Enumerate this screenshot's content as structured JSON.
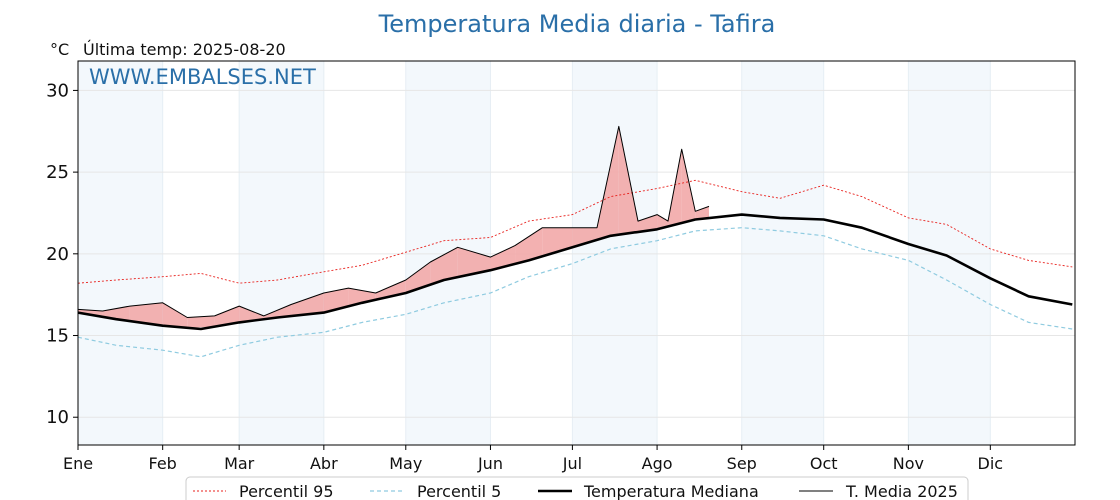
{
  "chart_data": {
    "type": "line",
    "title": "Temperatura Media diaria - Tafira",
    "unit_label": "°C",
    "last_temp_label": "Última temp: 2025-08-20",
    "watermark": "WWW.EMBALSES.NET",
    "xlabel": "",
    "ylabel": "",
    "ylim": [
      8.3,
      31.8
    ],
    "yticks": [
      10,
      15,
      20,
      25,
      30
    ],
    "months": [
      "Ene",
      "Feb",
      "Mar",
      "Abr",
      "May",
      "Jun",
      "Jul",
      "Ago",
      "Sep",
      "Oct",
      "Nov",
      "Dic"
    ],
    "grid": true,
    "legend_position": "bottom",
    "colors": {
      "title": "#2a6fa8",
      "p95": "#e8211d",
      "p5": "#8fcbe0",
      "median": "#000000",
      "current": "#000000",
      "above_fill": "#f2a8a8",
      "below_fill": "#7fa6c8",
      "band": "#f3f8fc"
    },
    "series": [
      {
        "name": "Percentil 95",
        "key": "p95",
        "x": [
          "01-01",
          "01-15",
          "02-01",
          "02-15",
          "03-01",
          "03-15",
          "04-01",
          "04-15",
          "05-01",
          "05-15",
          "06-01",
          "06-15",
          "07-01",
          "07-15",
          "08-01",
          "08-15",
          "09-01",
          "09-15",
          "10-01",
          "10-15",
          "11-01",
          "11-15",
          "12-01",
          "12-15",
          "12-31"
        ],
        "values": [
          18.2,
          18.4,
          18.6,
          18.8,
          18.2,
          18.4,
          18.9,
          19.3,
          20.1,
          20.8,
          21.0,
          22.0,
          22.4,
          23.5,
          24.0,
          24.5,
          23.8,
          23.4,
          24.2,
          23.5,
          22.2,
          21.8,
          20.3,
          19.6,
          19.2
        ]
      },
      {
        "name": "Percentil 5",
        "key": "p5",
        "x": [
          "01-01",
          "01-15",
          "02-01",
          "02-15",
          "03-01",
          "03-15",
          "04-01",
          "04-15",
          "05-01",
          "05-15",
          "06-01",
          "06-15",
          "07-01",
          "07-15",
          "08-01",
          "08-15",
          "09-01",
          "09-15",
          "10-01",
          "10-15",
          "11-01",
          "11-15",
          "12-01",
          "12-15",
          "12-31"
        ],
        "values": [
          14.9,
          14.4,
          14.1,
          13.7,
          14.4,
          14.9,
          15.2,
          15.8,
          16.3,
          17.0,
          17.6,
          18.6,
          19.4,
          20.3,
          20.8,
          21.4,
          21.6,
          21.4,
          21.1,
          20.3,
          19.6,
          18.4,
          16.9,
          15.8,
          15.4
        ]
      },
      {
        "name": "Temperatura Mediana",
        "key": "median",
        "x": [
          "01-01",
          "01-15",
          "02-01",
          "02-15",
          "03-01",
          "03-15",
          "04-01",
          "04-15",
          "05-01",
          "05-15",
          "06-01",
          "06-15",
          "07-01",
          "07-15",
          "08-01",
          "08-15",
          "09-01",
          "09-15",
          "10-01",
          "10-15",
          "11-01",
          "11-15",
          "12-01",
          "12-15",
          "12-31"
        ],
        "values": [
          16.4,
          16.0,
          15.6,
          15.4,
          15.8,
          16.1,
          16.4,
          17.0,
          17.6,
          18.4,
          19.0,
          19.6,
          20.4,
          21.1,
          21.5,
          22.1,
          22.4,
          22.2,
          22.1,
          21.6,
          20.6,
          19.9,
          18.5,
          17.4,
          16.9
        ]
      },
      {
        "name": "T. Media 2025",
        "key": "current",
        "x": [
          "01-01",
          "01-10",
          "01-20",
          "02-01",
          "02-10",
          "02-20",
          "03-01",
          "03-10",
          "03-20",
          "04-01",
          "04-10",
          "04-20",
          "05-01",
          "05-10",
          "05-20",
          "06-01",
          "06-10",
          "06-20",
          "07-01",
          "07-10",
          "07-18",
          "07-25",
          "08-01",
          "08-05",
          "08-10",
          "08-15",
          "08-20"
        ],
        "values": [
          16.6,
          16.5,
          16.8,
          17.0,
          16.1,
          16.2,
          16.8,
          16.2,
          16.9,
          17.6,
          17.9,
          17.6,
          18.4,
          19.5,
          20.4,
          19.8,
          20.5,
          21.6,
          21.6,
          21.6,
          27.8,
          22.0,
          22.4,
          22.0,
          26.4,
          22.6,
          22.9
        ]
      }
    ]
  }
}
